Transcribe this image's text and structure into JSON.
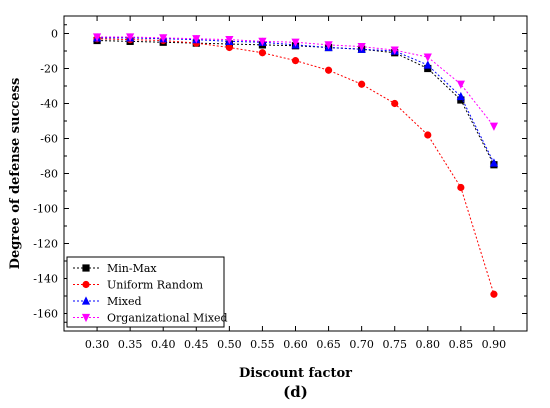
{
  "chart_data": {
    "type": "line",
    "xlabel": "Discount factor",
    "ylabel": "Degree of defense success",
    "panel_label": "(d)",
    "x": [
      0.3,
      0.35,
      0.4,
      0.45,
      0.5,
      0.55,
      0.6,
      0.65,
      0.7,
      0.75,
      0.8,
      0.85,
      0.9
    ],
    "x_tick_labels": [
      "0.30",
      "0.35",
      "0.40",
      "0.45",
      "0.50",
      "0.55",
      "0.60",
      "0.65",
      "0.70",
      "0.75",
      "0.80",
      "0.85",
      "0.90"
    ],
    "xlim": [
      0.25,
      0.95
    ],
    "ylim": [
      -170,
      10
    ],
    "y_ticks": [
      0,
      -20,
      -40,
      -60,
      -80,
      -100,
      -120,
      -140,
      -160
    ],
    "y_tick_labels": [
      "0",
      "-20",
      "-40",
      "-60",
      "-80",
      "-100",
      "-120",
      "-140",
      "-160"
    ],
    "legend_position": "bottom-left",
    "series": [
      {
        "name": "Min-Max",
        "color": "#000000",
        "marker": "square",
        "values": [
          -4,
          -4.5,
          -5,
          -5.5,
          -6,
          -6.5,
          -7,
          -8,
          -9,
          -11,
          -20,
          -38,
          -75
        ]
      },
      {
        "name": "Uniform Random",
        "color": "#ff0000",
        "marker": "circle",
        "values": [
          -3,
          -3.5,
          -4,
          -5.5,
          -8,
          -11,
          -15.5,
          -21,
          -29,
          -40,
          -58,
          -88,
          -149
        ]
      },
      {
        "name": "Mixed",
        "color": "#0000ff",
        "marker": "triangle-up",
        "values": [
          -2.5,
          -2.5,
          -3,
          -3.5,
          -4.5,
          -5,
          -6.5,
          -8,
          -9,
          -10,
          -18,
          -36,
          -74
        ]
      },
      {
        "name": "Organizational Mixed",
        "color": "#ff00ff",
        "marker": "triangle-down",
        "values": [
          -2,
          -2,
          -2.5,
          -3,
          -3.5,
          -4.5,
          -5,
          -6.5,
          -7.5,
          -9.5,
          -13.5,
          -29,
          -53
        ]
      }
    ]
  }
}
